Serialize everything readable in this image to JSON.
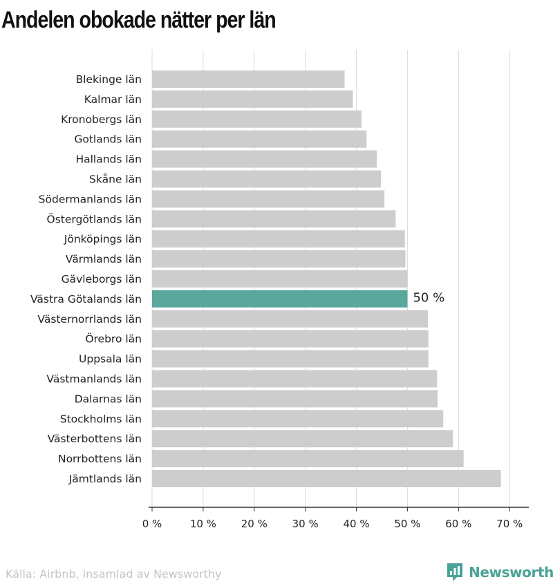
{
  "title": "Andelen obokade nätter per län",
  "source": "Källa: Airbnb, insamlad av Newsworthy",
  "brand": {
    "name": "Newsworthy",
    "icon": "newsworthy-logo-icon"
  },
  "colors": {
    "bar": "#cdcdcd",
    "highlight": "#5aa89b",
    "grid": "#dcdcdc",
    "axis": "#333333",
    "brand": "#4aa398"
  },
  "chart_data": {
    "type": "bar",
    "orientation": "horizontal",
    "categories": [
      "Blekinge län",
      "Kalmar län",
      "Kronobergs län",
      "Gotlands län",
      "Hallands län",
      "Skåne län",
      "Södermanlands län",
      "Östergötlands län",
      "Jönköpings län",
      "Värmlands län",
      "Gävleborgs län",
      "Västra Götalands län",
      "Västernorrlands län",
      "Örebro län",
      "Uppsala län",
      "Västmanlands län",
      "Dalarnas län",
      "Stockholms län",
      "Västerbottens län",
      "Norrbottens län",
      "Jämtlands län"
    ],
    "values": [
      37.7,
      39.3,
      41.0,
      42.0,
      44.0,
      44.8,
      45.5,
      47.7,
      49.5,
      49.6,
      50.0,
      50.0,
      54.0,
      54.1,
      54.1,
      55.8,
      55.9,
      57.0,
      58.9,
      61.0,
      68.3
    ],
    "highlight_category": "Västra Götalands län",
    "highlight_label": "50 %",
    "xlim": [
      0,
      72
    ],
    "ticks": [
      0,
      10,
      20,
      30,
      40,
      50,
      60,
      70
    ],
    "tick_labels": [
      "0 %",
      "10 %",
      "20 %",
      "30 %",
      "40 %",
      "50 %",
      "60 %",
      "70 %"
    ],
    "xlabel": "",
    "ylabel": "",
    "grid": true
  }
}
